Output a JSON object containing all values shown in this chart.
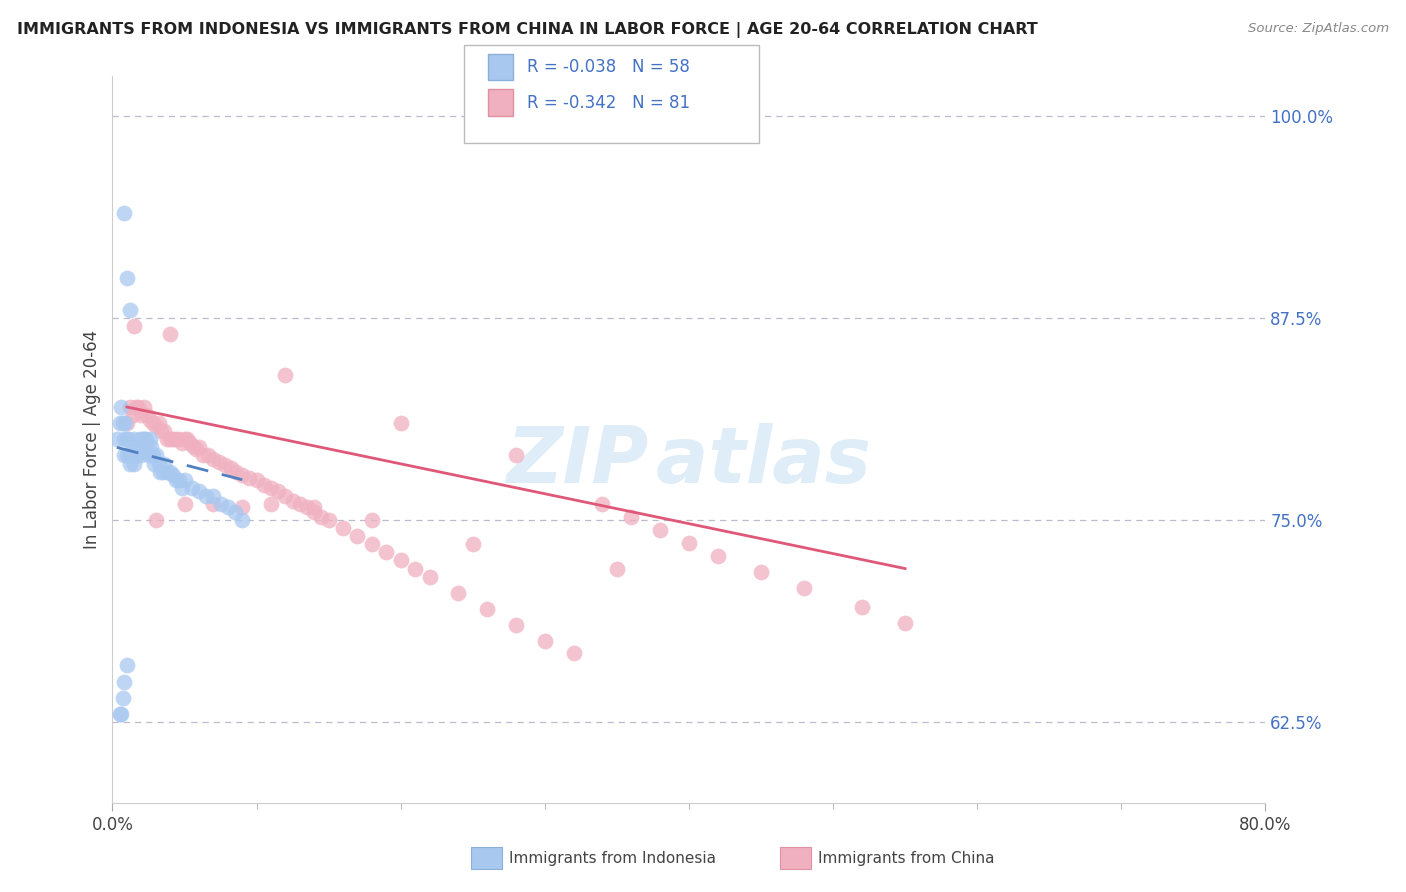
{
  "title": "IMMIGRANTS FROM INDONESIA VS IMMIGRANTS FROM CHINA IN LABOR FORCE | AGE 20-64 CORRELATION CHART",
  "source": "Source: ZipAtlas.com",
  "ylabel": "In Labor Force | Age 20-64",
  "xlim": [
    0.0,
    0.8
  ],
  "ylim": [
    0.575,
    1.025
  ],
  "yticks_right": [
    0.625,
    0.75,
    0.875,
    1.0
  ],
  "ytick_labels_right": [
    "62.5%",
    "75.0%",
    "87.5%",
    "100.0%"
  ],
  "legend_R_indonesia": "-0.038",
  "legend_N_indonesia": "58",
  "legend_R_china": "-0.342",
  "legend_N_china": "81",
  "color_indonesia": "#a8c8f0",
  "color_china": "#f0b0c0",
  "color_line_indonesia": "#5080c0",
  "color_line_china": "#e05878",
  "color_text_blue": "#4472c4",
  "indo_x": [
    0.003,
    0.005,
    0.006,
    0.007,
    0.008,
    0.008,
    0.009,
    0.01,
    0.01,
    0.011,
    0.012,
    0.012,
    0.013,
    0.014,
    0.015,
    0.015,
    0.016,
    0.017,
    0.018,
    0.019,
    0.02,
    0.021,
    0.022,
    0.023,
    0.024,
    0.025,
    0.026,
    0.027,
    0.028,
    0.029,
    0.03,
    0.032,
    0.033,
    0.035,
    0.036,
    0.038,
    0.04,
    0.042,
    0.044,
    0.046,
    0.048,
    0.05,
    0.055,
    0.06,
    0.065,
    0.07,
    0.075,
    0.08,
    0.085,
    0.09,
    0.008,
    0.01,
    0.012,
    0.005,
    0.006,
    0.007,
    0.008,
    0.01
  ],
  "indo_y": [
    0.8,
    0.81,
    0.82,
    0.81,
    0.8,
    0.79,
    0.81,
    0.79,
    0.8,
    0.8,
    0.79,
    0.785,
    0.79,
    0.795,
    0.785,
    0.8,
    0.79,
    0.79,
    0.795,
    0.8,
    0.79,
    0.8,
    0.8,
    0.8,
    0.795,
    0.79,
    0.8,
    0.795,
    0.79,
    0.785,
    0.79,
    0.785,
    0.78,
    0.78,
    0.785,
    0.78,
    0.78,
    0.778,
    0.775,
    0.775,
    0.77,
    0.775,
    0.77,
    0.768,
    0.765,
    0.765,
    0.76,
    0.758,
    0.755,
    0.75,
    0.94,
    0.9,
    0.88,
    0.63,
    0.63,
    0.64,
    0.65,
    0.66
  ],
  "china_x": [
    0.01,
    0.012,
    0.014,
    0.016,
    0.018,
    0.02,
    0.022,
    0.024,
    0.026,
    0.028,
    0.03,
    0.032,
    0.034,
    0.036,
    0.038,
    0.04,
    0.042,
    0.044,
    0.046,
    0.048,
    0.05,
    0.052,
    0.054,
    0.056,
    0.058,
    0.06,
    0.063,
    0.066,
    0.07,
    0.074,
    0.078,
    0.082,
    0.086,
    0.09,
    0.095,
    0.1,
    0.105,
    0.11,
    0.115,
    0.12,
    0.125,
    0.13,
    0.135,
    0.14,
    0.145,
    0.15,
    0.16,
    0.17,
    0.18,
    0.19,
    0.2,
    0.21,
    0.22,
    0.24,
    0.26,
    0.28,
    0.3,
    0.32,
    0.34,
    0.36,
    0.38,
    0.4,
    0.42,
    0.45,
    0.48,
    0.52,
    0.55,
    0.015,
    0.04,
    0.12,
    0.2,
    0.28,
    0.03,
    0.05,
    0.07,
    0.09,
    0.11,
    0.14,
    0.18,
    0.25,
    0.35
  ],
  "china_y": [
    0.81,
    0.82,
    0.815,
    0.82,
    0.82,
    0.815,
    0.82,
    0.815,
    0.812,
    0.81,
    0.808,
    0.81,
    0.805,
    0.805,
    0.8,
    0.8,
    0.8,
    0.8,
    0.8,
    0.798,
    0.8,
    0.8,
    0.798,
    0.796,
    0.794,
    0.795,
    0.79,
    0.79,
    0.788,
    0.786,
    0.784,
    0.782,
    0.78,
    0.778,
    0.776,
    0.775,
    0.772,
    0.77,
    0.768,
    0.765,
    0.762,
    0.76,
    0.758,
    0.755,
    0.752,
    0.75,
    0.745,
    0.74,
    0.735,
    0.73,
    0.725,
    0.72,
    0.715,
    0.705,
    0.695,
    0.685,
    0.675,
    0.668,
    0.76,
    0.752,
    0.744,
    0.736,
    0.728,
    0.718,
    0.708,
    0.696,
    0.686,
    0.87,
    0.865,
    0.84,
    0.81,
    0.79,
    0.75,
    0.76,
    0.76,
    0.758,
    0.76,
    0.758,
    0.75,
    0.735,
    0.72
  ],
  "indo_line_x": [
    0.003,
    0.09
  ],
  "indo_line_y": [
    0.795,
    0.775
  ],
  "china_line_x": [
    0.01,
    0.55
  ],
  "china_line_y": [
    0.82,
    0.72
  ]
}
